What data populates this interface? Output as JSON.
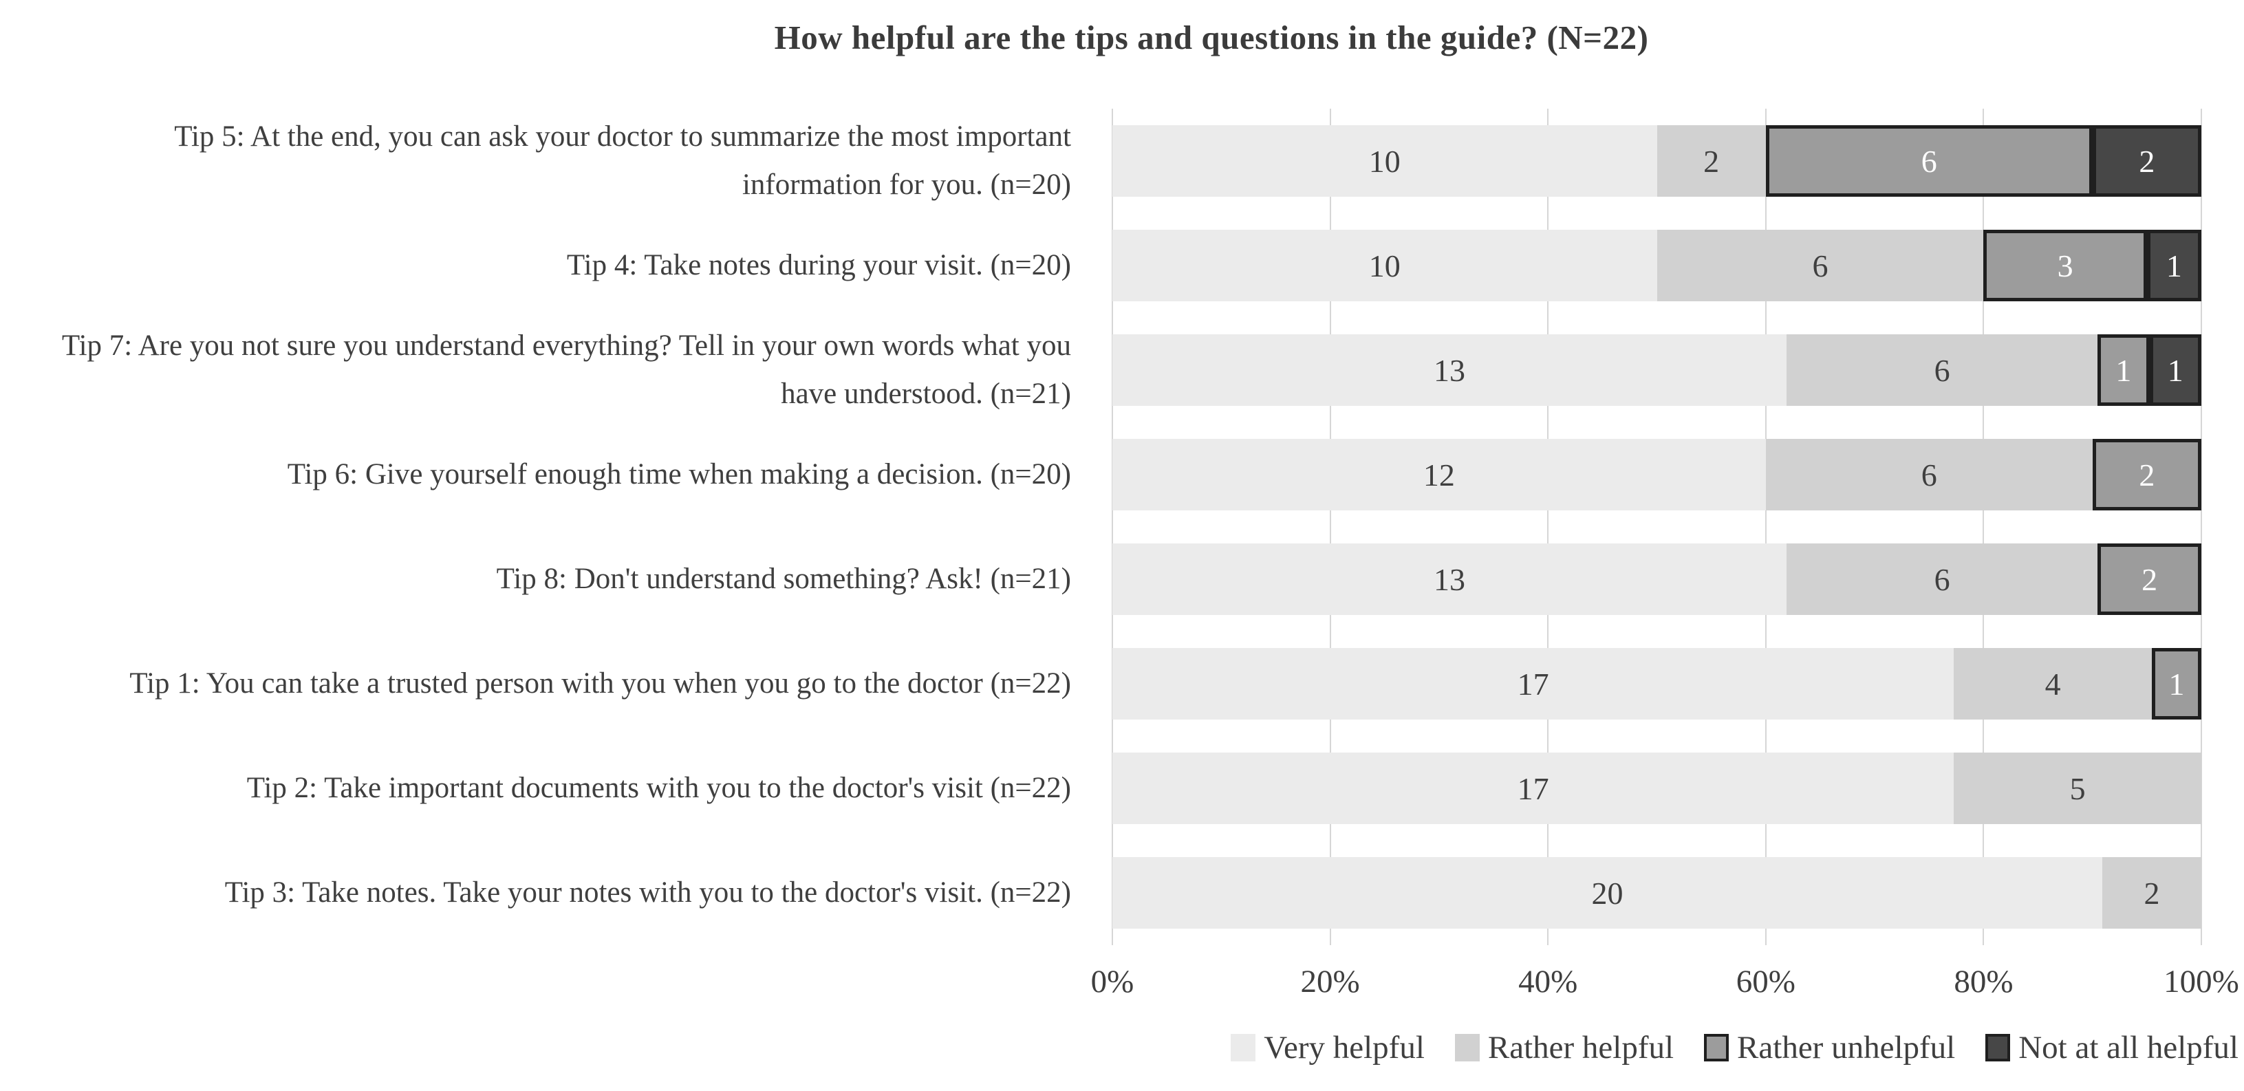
{
  "title": "How helpful are the tips and questions in the guide? (N=22)",
  "colors": {
    "very_helpful": "#ebebeb",
    "rather_helpful": "#d1d1d1",
    "rather_unhelpful": "#9c9c9c",
    "not_at_all_helpful": "#474747",
    "segment_border": "#1f1f1f",
    "gridline": "#d6d6d6",
    "text": "#3f3f3f",
    "label_on_dark": "#ffffff"
  },
  "chart_data": {
    "type": "bar",
    "subtype": "stacked-100-percent",
    "orientation": "horizontal",
    "title": "How helpful are the tips and questions in the guide? (N=22)",
    "grid": true,
    "legend_position": "bottom",
    "categories": [
      "Tip 5: At the end, you can ask your doctor to summarize the most important information for you. (n=20)",
      "Tip 4: Take notes during your visit. (n=20)",
      "Tip 7: Are you not sure you understand everything? Tell in your own words what you have understood. (n=21)",
      "Tip 6:  Give yourself enough time when making a decision. (n=20)",
      "Tip 8: Don't understand something? Ask! (n=21)",
      "Tip 1: You can take a trusted person with you when you go to the doctor (n=22)",
      "Tip 2: Take important documents with you to the doctor's visit (n=22)",
      "Tip 3: Take notes. Take your notes with you  to the doctor's visit. (n=22)"
    ],
    "row_totals": [
      20,
      20,
      21,
      20,
      21,
      22,
      22,
      22
    ],
    "series": [
      {
        "name": "Very helpful",
        "color": "#ebebeb",
        "bordered": false,
        "label_color": "#3f3f3f",
        "values": [
          10,
          10,
          13,
          12,
          13,
          17,
          17,
          20
        ]
      },
      {
        "name": "Rather helpful",
        "color": "#d1d1d1",
        "bordered": false,
        "label_color": "#3f3f3f",
        "values": [
          2,
          6,
          6,
          6,
          6,
          4,
          5,
          2
        ]
      },
      {
        "name": "Rather unhelpful",
        "color": "#9c9c9c",
        "bordered": true,
        "label_color": "#ffffff",
        "values": [
          6,
          3,
          1,
          2,
          2,
          1,
          0,
          0
        ]
      },
      {
        "name": "Not at all helpful",
        "color": "#474747",
        "bordered": true,
        "label_color": "#ffffff",
        "values": [
          2,
          1,
          1,
          0,
          0,
          0,
          0,
          0
        ]
      }
    ],
    "x_axis": {
      "ticks": [
        "0%",
        "20%",
        "40%",
        "60%",
        "80%",
        "100%"
      ],
      "range": [
        0,
        100
      ]
    }
  }
}
